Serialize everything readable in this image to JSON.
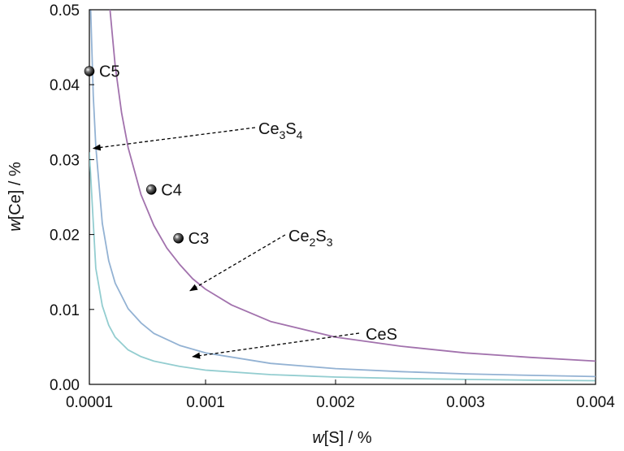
{
  "chart_data": {
    "type": "line",
    "xlabel": {
      "var": "w",
      "rest": "[S] / %"
    },
    "ylabel": {
      "var": "w",
      "rest": "[Ce] / %"
    },
    "xlim": [
      0.0001,
      0.004
    ],
    "ylim": [
      0,
      0.05
    ],
    "x_ticks": [
      0.0001,
      0.001,
      0.002,
      0.003,
      0.004
    ],
    "x_tick_labels": [
      "0.0001",
      "0.001",
      "0.002",
      "0.003",
      "0.004"
    ],
    "y_ticks": [
      0,
      0.01,
      0.02,
      0.03,
      0.04,
      0.05
    ],
    "y_tick_labels": [
      "0.00",
      "0.01",
      "0.02",
      "0.03",
      "0.04",
      "0.05"
    ],
    "grid": false,
    "series": [
      {
        "name": "CeS",
        "color": "#93cdd0",
        "x": [
          0.0001,
          0.00015,
          0.0002,
          0.00025,
          0.0003,
          0.0004,
          0.0005,
          0.0006,
          0.0008,
          0.001,
          0.0015,
          0.002,
          0.0025,
          0.003,
          0.0035,
          0.004
        ],
        "y": [
          0.031,
          0.0155,
          0.0105,
          0.0079,
          0.0063,
          0.0046,
          0.0037,
          0.0031,
          0.0024,
          0.0019,
          0.0013,
          0.00098,
          0.00079,
          0.00066,
          0.00056,
          0.00049
        ]
      },
      {
        "name": "Ce3S4",
        "color": "#93b2d3",
        "x": [
          0.00011,
          0.00013,
          0.00015,
          0.0002,
          0.00025,
          0.0003,
          0.0004,
          0.0005,
          0.0006,
          0.0008,
          0.001,
          0.0015,
          0.002,
          0.0025,
          0.003,
          0.0035,
          0.004
        ],
        "y": [
          0.05,
          0.0385,
          0.0318,
          0.0215,
          0.0165,
          0.0135,
          0.0101,
          0.0082,
          0.0068,
          0.0052,
          0.0042,
          0.0028,
          0.0021,
          0.0017,
          0.0014,
          0.0012,
          0.00104
        ]
      },
      {
        "name": "Ce2S3",
        "color": "#a272ad",
        "x": [
          0.00026,
          0.0003,
          0.00035,
          0.0004,
          0.0005,
          0.0006,
          0.0007,
          0.0008,
          0.0009,
          0.001,
          0.0012,
          0.0015,
          0.002,
          0.0025,
          0.003,
          0.0035,
          0.004
        ],
        "y": [
          0.05,
          0.0425,
          0.0362,
          0.0316,
          0.0253,
          0.0212,
          0.0182,
          0.016,
          0.0141,
          0.0127,
          0.0106,
          0.0084,
          0.0063,
          0.0051,
          0.0042,
          0.0036,
          0.0031
        ]
      }
    ],
    "points": [
      {
        "label": "C5",
        "x": 0.0001,
        "y": 0.0418
      },
      {
        "label": "C4",
        "x": 0.00058,
        "y": 0.026
      },
      {
        "label": "C3",
        "x": 0.00079,
        "y": 0.0195
      }
    ],
    "annotations": [
      {
        "text": "Ce",
        "sub1": "3",
        "mid": "S",
        "sub2": "4",
        "target_x": 0.00013,
        "target_y": 0.0315
      },
      {
        "text": "Ce",
        "sub1": "2",
        "mid": "S",
        "sub2": "3",
        "target_x": 0.00088,
        "target_y": 0.0125
      },
      {
        "text": "CeS",
        "sub1": "",
        "mid": "",
        "sub2": "",
        "target_x": 0.0009,
        "target_y": 0.0037
      }
    ]
  }
}
